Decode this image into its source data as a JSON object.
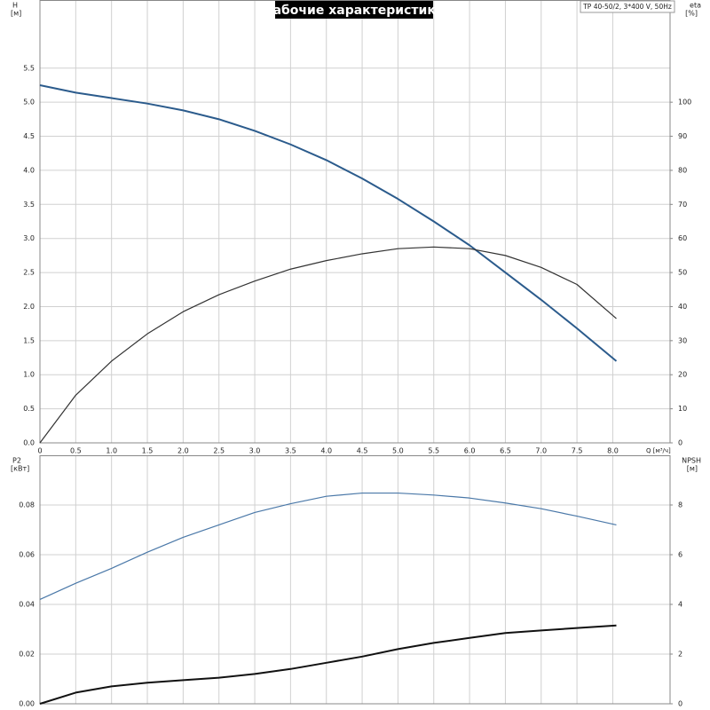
{
  "chart_data": [
    {
      "type": "line",
      "title": "Рабочие характеристики",
      "info": "TP 40-50/2, 3*400 V, 50Hz",
      "ylabel": "H",
      "ylabel_unit": "[м]",
      "y2label": "eta",
      "y2label_unit": "[%]",
      "xlabel": "Q [м³/ч]",
      "xlim": [
        0,
        8.8
      ],
      "xticks": [
        0,
        0.5,
        {
          "value": 1,
          "label": "1.0"
        },
        1.5,
        {
          "value": 2,
          "label": "2.0"
        },
        2.5,
        {
          "value": 3,
          "label": "3.0"
        },
        3.5,
        {
          "value": 4,
          "label": "4.0"
        },
        4.5,
        {
          "value": 5,
          "label": "5.0"
        },
        5.5,
        {
          "value": 6,
          "label": "6.0"
        },
        6.5,
        {
          "value": 7,
          "label": "7.0"
        },
        7.5,
        {
          "value": 8,
          "label": "8.0"
        }
      ],
      "ylim": [
        0,
        6.5
      ],
      "yticks": [
        {
          "value": 0,
          "label": "0.0"
        },
        0.5,
        {
          "value": 1,
          "label": "1.0"
        },
        1.5,
        {
          "value": 2,
          "label": "2.0"
        },
        2.5,
        {
          "value": 3,
          "label": "3.0"
        },
        3.5,
        {
          "value": 4,
          "label": "4.0"
        },
        4.5,
        {
          "value": 5,
          "label": "5.0"
        },
        5.5
      ],
      "y2lim": [
        0,
        130
      ],
      "y2ticks": [
        0,
        10,
        20,
        30,
        40,
        50,
        60,
        70,
        80,
        90,
        100
      ],
      "grid": true,
      "series": [
        {
          "color": "#2b5b8c",
          "width": 2,
          "x": [
            0,
            0.5,
            1,
            1.5,
            2,
            2.5,
            3,
            3.5,
            4,
            4.5,
            5,
            5.5,
            6,
            6.5,
            7,
            7.5,
            8.05
          ],
          "values": [
            5.25,
            5.14,
            5.06,
            4.98,
            4.88,
            4.75,
            4.58,
            4.38,
            4.15,
            3.88,
            3.58,
            3.25,
            2.9,
            2.5,
            2.1,
            1.68,
            1.2
          ]
        },
        {
          "color": "#333333",
          "width": 1.2,
          "axis": "y2",
          "x": [
            0,
            0.5,
            1,
            1.5,
            2,
            2.5,
            3,
            3.5,
            4,
            4.5,
            5,
            5.5,
            6,
            6.5,
            7,
            7.5,
            8.05
          ],
          "values": [
            0,
            14,
            24,
            32,
            38.5,
            43.5,
            47.5,
            51,
            53.5,
            55.5,
            57,
            57.5,
            57,
            55,
            51.5,
            46.5,
            36.5
          ]
        }
      ]
    },
    {
      "type": "line",
      "ylabel": "P2",
      "ylabel_unit": "[кВт]",
      "y2label": "NPSH",
      "y2label_unit": "[м]",
      "xlim": [
        0,
        8.8
      ],
      "ylim": [
        0,
        0.1
      ],
      "yticks": [
        {
          "value": 0,
          "label": "0.00"
        },
        {
          "value": 0.02,
          "label": "0.02"
        },
        {
          "value": 0.04,
          "label": "0.04"
        },
        {
          "value": 0.06,
          "label": "0.06"
        },
        {
          "value": 0.08,
          "label": "0.08"
        }
      ],
      "y2lim": [
        0,
        10
      ],
      "y2ticks": [
        0,
        2,
        4,
        6,
        8
      ],
      "grid": true,
      "series": [
        {
          "color": "#4a78a8",
          "width": 1.2,
          "x": [
            0,
            0.5,
            1,
            1.5,
            2,
            2.5,
            3,
            3.5,
            4,
            4.5,
            5,
            5.5,
            6,
            6.5,
            7,
            7.5,
            8.05
          ],
          "values": [
            0.042,
            0.0485,
            0.0545,
            0.061,
            0.067,
            0.072,
            0.077,
            0.0805,
            0.0835,
            0.0848,
            0.0848,
            0.084,
            0.0828,
            0.0808,
            0.0785,
            0.0755,
            0.072
          ]
        },
        {
          "color": "#111111",
          "width": 2,
          "axis": "y2",
          "x": [
            0,
            0.5,
            1,
            1.5,
            2,
            2.5,
            3,
            3.5,
            4,
            4.5,
            5,
            5.5,
            6,
            6.5,
            7,
            7.5,
            8.05
          ],
          "values": [
            0,
            0.45,
            0.7,
            0.85,
            0.95,
            1.05,
            1.2,
            1.4,
            1.65,
            1.9,
            2.2,
            2.45,
            2.65,
            2.85,
            2.95,
            3.05,
            3.15
          ]
        }
      ]
    }
  ]
}
